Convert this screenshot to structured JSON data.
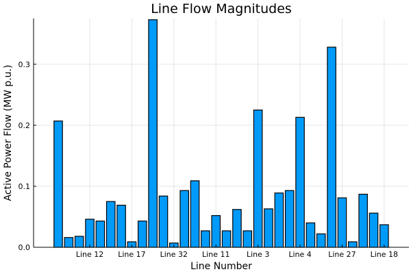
{
  "chart_data": {
    "type": "bar",
    "title": "Line Flow Magnitudes",
    "xlabel": "Line Number",
    "ylabel": "Active Power Flow (MW p.u.)",
    "ylim": [
      0,
      0.375
    ],
    "yticks": [
      0.0,
      0.1,
      0.2,
      0.3
    ],
    "ytick_labels": [
      "0.0",
      "0.1",
      "0.2",
      "0.3"
    ],
    "grid": true,
    "legend": "none",
    "bar_color": "#009af9",
    "values": [
      0.207,
      0.016,
      0.018,
      0.046,
      0.043,
      0.075,
      0.069,
      0.009,
      0.043,
      0.373,
      0.084,
      0.007,
      0.093,
      0.109,
      0.027,
      0.052,
      0.027,
      0.062,
      0.027,
      0.225,
      0.063,
      0.089,
      0.093,
      0.213,
      0.04,
      0.022,
      0.328,
      0.081,
      0.009,
      0.087,
      0.056,
      0.037
    ],
    "xticks": [
      {
        "index": 3,
        "label": "Line 12"
      },
      {
        "index": 7,
        "label": "Line 17"
      },
      {
        "index": 11,
        "label": "Line 32"
      },
      {
        "index": 15,
        "label": "Line 11"
      },
      {
        "index": 19,
        "label": "Line 3"
      },
      {
        "index": 23,
        "label": "Line 4"
      },
      {
        "index": 27,
        "label": "Line 27"
      },
      {
        "index": 31,
        "label": "Line 18"
      }
    ]
  }
}
